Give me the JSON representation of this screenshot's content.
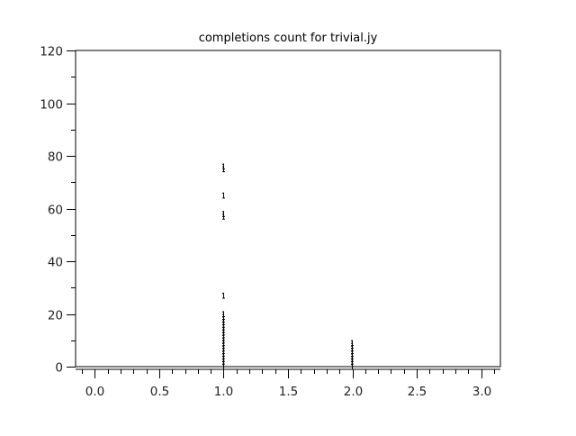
{
  "chart_data": {
    "type": "scatter",
    "title": "completions count for trivial.jy",
    "xlabel": "",
    "ylabel": "",
    "xlim": [
      -0.15,
      3.15
    ],
    "ylim": [
      0,
      120
    ],
    "grid": false,
    "x_ticks": [
      "0.0",
      "0.5",
      "1.0",
      "1.5",
      "2.0",
      "2.5",
      "3.0"
    ],
    "x_tick_values": [
      0,
      0.5,
      1,
      1.5,
      2,
      2.5,
      3
    ],
    "y_ticks": [
      "0",
      "20",
      "40",
      "60",
      "80",
      "100",
      "120"
    ],
    "y_tick_values": [
      0,
      20,
      40,
      60,
      80,
      100,
      120
    ],
    "colors": {
      "marker": "#000000",
      "axis": "#000000"
    },
    "series": [
      {
        "x": 1,
        "values": [
          76,
          75,
          65,
          58,
          57,
          27,
          20,
          19,
          18,
          17,
          16,
          15,
          14,
          13,
          12,
          11,
          10,
          9,
          8,
          7,
          6,
          5,
          4,
          3,
          2,
          1,
          0
        ]
      },
      {
        "x": 2,
        "values": [
          9,
          8,
          7,
          6,
          5,
          4,
          3,
          2,
          1,
          0
        ]
      }
    ]
  }
}
